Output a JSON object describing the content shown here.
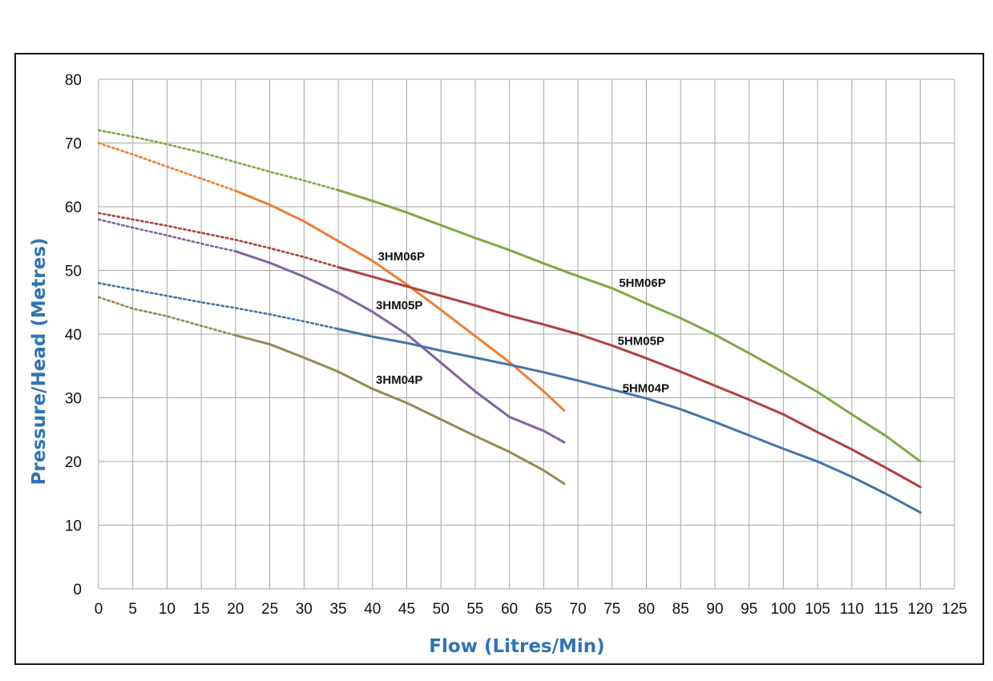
{
  "chart_data": {
    "type": "line",
    "title": "",
    "xlabel": "Flow (Litres/Min)",
    "ylabel": "Pressure/Head (Metres)",
    "xlim": [
      0,
      125
    ],
    "ylim": [
      0,
      80
    ],
    "x_ticks": [
      0,
      5,
      10,
      15,
      20,
      25,
      30,
      35,
      40,
      45,
      50,
      55,
      60,
      65,
      70,
      75,
      80,
      85,
      90,
      95,
      100,
      105,
      110,
      115,
      120,
      125
    ],
    "y_ticks": [
      0,
      10,
      20,
      30,
      40,
      50,
      60,
      70,
      80
    ],
    "grid": true,
    "legend": "inline labels",
    "axis_color": "#2e74b5",
    "series": [
      {
        "name": "3HM04P",
        "color": "#948a54",
        "label_at": [
          40.5,
          32.2
        ],
        "dotted": [
          [
            0,
            45.8
          ],
          [
            5,
            44.0
          ],
          [
            10,
            42.8
          ],
          [
            15,
            41.3
          ],
          [
            20,
            39.8
          ]
        ],
        "solid": [
          [
            20,
            39.8
          ],
          [
            25,
            38.4
          ],
          [
            30,
            36.3
          ],
          [
            35,
            34.1
          ],
          [
            40,
            31.4
          ],
          [
            45,
            29.2
          ],
          [
            50,
            26.6
          ],
          [
            55,
            24.0
          ],
          [
            60,
            21.5
          ],
          [
            65,
            18.6
          ],
          [
            68,
            16.5
          ]
        ]
      },
      {
        "name": "3HM05P",
        "color": "#8064a2",
        "label_at": [
          40.5,
          43.9
        ],
        "dotted": [
          [
            0,
            58.0
          ],
          [
            5,
            56.7
          ],
          [
            10,
            55.5
          ],
          [
            15,
            54.2
          ],
          [
            20,
            53.0
          ]
        ],
        "solid": [
          [
            20,
            53.0
          ],
          [
            25,
            51.2
          ],
          [
            30,
            49.0
          ],
          [
            35,
            46.5
          ],
          [
            40,
            43.5
          ],
          [
            45,
            40.0
          ],
          [
            50,
            35.5
          ],
          [
            55,
            31.0
          ],
          [
            60,
            27.0
          ],
          [
            65,
            24.8
          ],
          [
            68,
            23.0
          ]
        ]
      },
      {
        "name": "3HM06P",
        "color": "#ed7d31",
        "label_at": [
          40.8,
          51.6
        ],
        "dotted": [
          [
            0,
            70.0
          ],
          [
            5,
            68.2
          ],
          [
            10,
            66.3
          ],
          [
            15,
            64.4
          ],
          [
            20,
            62.5
          ]
        ],
        "solid": [
          [
            20,
            62.5
          ],
          [
            25,
            60.3
          ],
          [
            30,
            57.7
          ],
          [
            35,
            54.6
          ],
          [
            40,
            51.5
          ],
          [
            45,
            47.8
          ],
          [
            50,
            43.8
          ],
          [
            55,
            39.7
          ],
          [
            60,
            35.6
          ],
          [
            65,
            31.0
          ],
          [
            68,
            28.0
          ]
        ]
      },
      {
        "name": "5HM04P",
        "color": "#4673a7",
        "label_at": [
          76.5,
          30.9
        ],
        "dotted": [
          [
            0,
            48.0
          ],
          [
            5,
            47.0
          ],
          [
            10,
            46.0
          ],
          [
            15,
            45.0
          ],
          [
            20,
            44.1
          ],
          [
            25,
            43.1
          ],
          [
            30,
            42.0
          ],
          [
            35,
            40.8
          ]
        ],
        "solid": [
          [
            35,
            40.8
          ],
          [
            40,
            39.6
          ],
          [
            45,
            38.6
          ],
          [
            50,
            37.4
          ],
          [
            55,
            36.3
          ],
          [
            60,
            35.2
          ],
          [
            65,
            34.0
          ],
          [
            70,
            32.7
          ],
          [
            75,
            31.3
          ],
          [
            80,
            29.9
          ],
          [
            85,
            28.2
          ],
          [
            90,
            26.2
          ],
          [
            95,
            24.1
          ],
          [
            100,
            22.0
          ],
          [
            105,
            20.0
          ],
          [
            110,
            17.6
          ],
          [
            115,
            14.9
          ],
          [
            120,
            12.0
          ]
        ]
      },
      {
        "name": "5HM05P",
        "color": "#b0413e",
        "label_at": [
          75.8,
          38.3
        ],
        "dotted": [
          [
            0,
            59.0
          ],
          [
            5,
            58.0
          ],
          [
            10,
            57.0
          ],
          [
            15,
            55.9
          ],
          [
            20,
            54.8
          ],
          [
            25,
            53.5
          ],
          [
            30,
            52.1
          ],
          [
            35,
            50.5
          ]
        ],
        "solid": [
          [
            35,
            50.5
          ],
          [
            40,
            49.0
          ],
          [
            45,
            47.5
          ],
          [
            50,
            46.0
          ],
          [
            55,
            44.5
          ],
          [
            60,
            42.9
          ],
          [
            65,
            41.5
          ],
          [
            70,
            40.0
          ],
          [
            75,
            38.2
          ],
          [
            80,
            36.2
          ],
          [
            85,
            34.1
          ],
          [
            90,
            31.9
          ],
          [
            95,
            29.7
          ],
          [
            100,
            27.4
          ],
          [
            105,
            24.6
          ],
          [
            110,
            21.9
          ],
          [
            115,
            19.0
          ],
          [
            120,
            16.0
          ]
        ]
      },
      {
        "name": "5HM06P",
        "color": "#7fa844",
        "label_at": [
          76,
          47.4
        ],
        "dotted": [
          [
            0,
            72.0
          ],
          [
            5,
            71.0
          ],
          [
            10,
            69.8
          ],
          [
            15,
            68.5
          ],
          [
            20,
            67.0
          ],
          [
            25,
            65.5
          ],
          [
            30,
            64.1
          ],
          [
            35,
            62.6
          ]
        ],
        "solid": [
          [
            35,
            62.6
          ],
          [
            40,
            60.9
          ],
          [
            45,
            59.1
          ],
          [
            50,
            57.1
          ],
          [
            55,
            55.1
          ],
          [
            60,
            53.2
          ],
          [
            65,
            51.1
          ],
          [
            70,
            49.1
          ],
          [
            75,
            47.2
          ],
          [
            80,
            44.8
          ],
          [
            85,
            42.5
          ],
          [
            90,
            39.9
          ],
          [
            95,
            37.0
          ],
          [
            100,
            34.0
          ],
          [
            105,
            30.9
          ],
          [
            110,
            27.4
          ],
          [
            115,
            24.0
          ],
          [
            120,
            20.0
          ]
        ]
      }
    ]
  }
}
